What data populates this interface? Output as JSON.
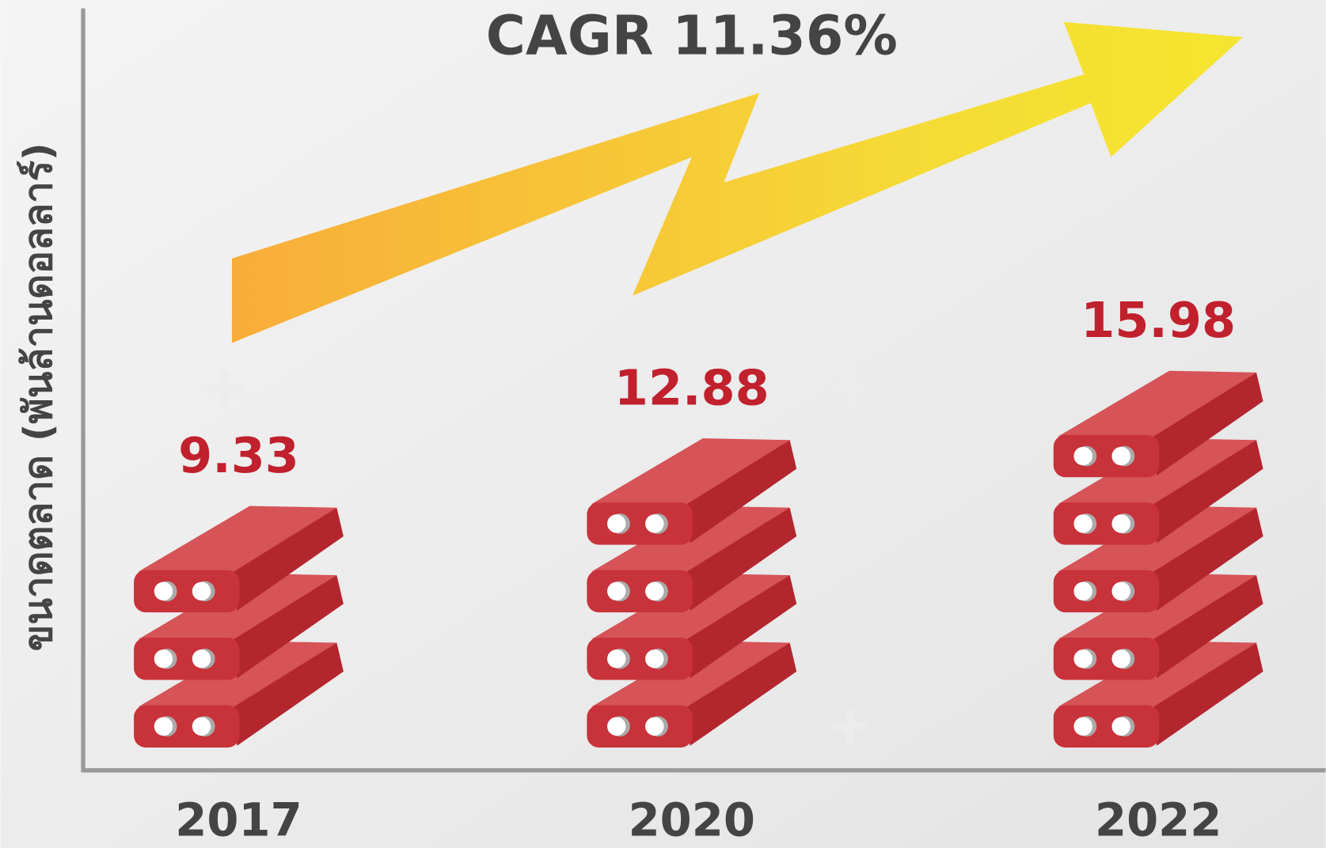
{
  "chart_data": {
    "type": "bar",
    "title": "CAGR 11.36%",
    "y_label": "ขนาดตลาด (พันล้านดอลลาร์)",
    "categories": [
      "2017",
      "2020",
      "2022"
    ],
    "values": [
      9.33,
      12.88,
      15.98
    ],
    "color": "#c8323a"
  }
}
